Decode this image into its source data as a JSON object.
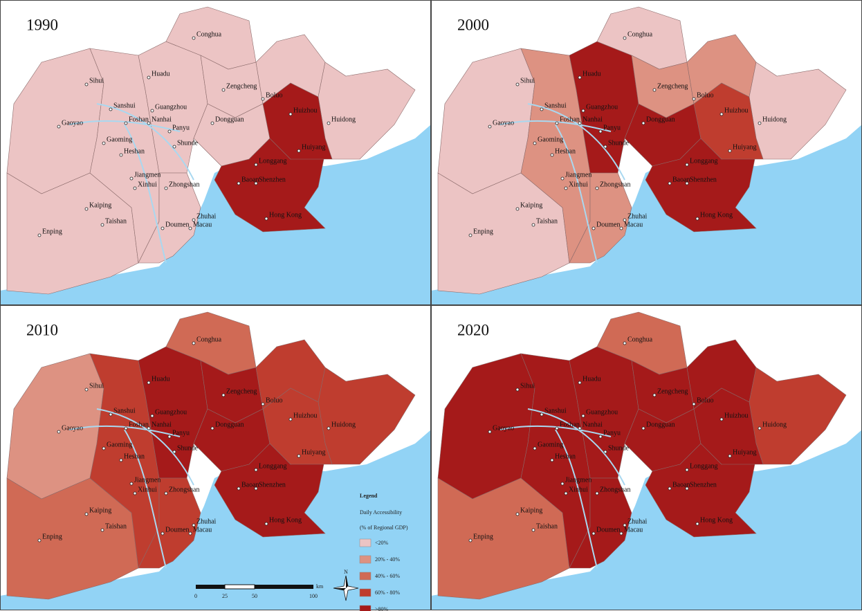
{
  "panels": [
    {
      "year": "1990",
      "region_classes": [
        0,
        0,
        0,
        0,
        0,
        0,
        0,
        0,
        0,
        4,
        0,
        4
      ]
    },
    {
      "year": "2000",
      "region_classes": [
        0,
        0,
        1,
        4,
        0,
        1,
        4,
        1,
        0,
        4,
        1,
        3
      ]
    },
    {
      "year": "2010",
      "region_classes": [
        1,
        2,
        3,
        4,
        2,
        4,
        4,
        3,
        3,
        4,
        3,
        3
      ]
    },
    {
      "year": "2020",
      "region_classes": [
        4,
        2,
        4,
        4,
        2,
        4,
        4,
        4,
        3,
        4,
        4,
        4
      ]
    }
  ],
  "cities": [
    "Conghua",
    "Huadu",
    "Sihui",
    "Zengcheng",
    "Boluo",
    "Sanshui",
    "Guangzhou",
    "Huizhou",
    "Gaoyao",
    "Foshan",
    "Nanhai",
    "Dongguan",
    "Huidong",
    "Panyu",
    "Gaoming",
    "Shunde",
    "Heshan",
    "Huiyang",
    "Longgang",
    "Jiangmen",
    "Xinhui",
    "Zhongshan",
    "Baoan",
    "Shenzhen",
    "Kaiping",
    "Taishan",
    "Zhuhai",
    "Doumen",
    "Macau",
    "Hong Kong",
    "Enping"
  ],
  "legend": {
    "title": "Legend",
    "subtitle": "Daily Accessibility",
    "unit": "(% of Regional GDP)",
    "items": [
      {
        "label": "<20%",
        "color": "#ecc4c4"
      },
      {
        "label": "20% - 40%",
        "color": "#dd9282"
      },
      {
        "label": "40% - 60%",
        "color": "#d06a55"
      },
      {
        "label": "60% - 80%",
        "color": "#bf3d2f"
      },
      {
        "label": ">80%",
        "color": "#a51a1a"
      }
    ]
  },
  "scale_bar": {
    "labels": [
      "0",
      "25",
      "50",
      "100"
    ],
    "unit": "km"
  },
  "north": "N"
}
